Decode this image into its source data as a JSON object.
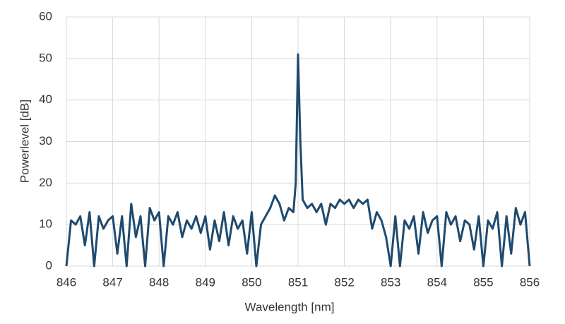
{
  "chart_data": {
    "type": "line",
    "xlabel": "Wavelength [nm]",
    "ylabel": "Powerlevel [dB]",
    "x": [
      846.0,
      846.1,
      846.2,
      846.3,
      846.4,
      846.5,
      846.6,
      846.7,
      846.8,
      846.9,
      847.0,
      847.1,
      847.2,
      847.3,
      847.4,
      847.5,
      847.6,
      847.7,
      847.8,
      847.9,
      848.0,
      848.1,
      848.2,
      848.3,
      848.4,
      848.5,
      848.6,
      848.7,
      848.8,
      848.9,
      849.0,
      849.1,
      849.2,
      849.3,
      849.4,
      849.5,
      849.6,
      849.7,
      849.8,
      849.9,
      850.0,
      850.1,
      850.2,
      850.3,
      850.4,
      850.5,
      850.6,
      850.7,
      850.8,
      850.9,
      850.95,
      851.0,
      851.05,
      851.1,
      851.2,
      851.3,
      851.4,
      851.5,
      851.6,
      851.7,
      851.8,
      851.9,
      852.0,
      852.1,
      852.2,
      852.3,
      852.4,
      852.5,
      852.6,
      852.7,
      852.8,
      852.9,
      853.0,
      853.1,
      853.2,
      853.3,
      853.4,
      853.5,
      853.6,
      853.7,
      853.8,
      853.9,
      854.0,
      854.1,
      854.2,
      854.3,
      854.4,
      854.5,
      854.6,
      854.7,
      854.8,
      854.9,
      855.0,
      855.1,
      855.2,
      855.3,
      855.4,
      855.5,
      855.6,
      855.7,
      855.8,
      855.9,
      856.0
    ],
    "series": [
      {
        "name": "Powerlevel",
        "color": "#1f4a6e",
        "values": [
          0,
          11,
          10,
          12,
          5,
          13,
          0,
          12,
          9,
          11,
          12,
          3,
          12,
          0,
          15,
          7,
          12,
          0,
          14,
          11,
          13,
          0,
          12,
          10,
          13,
          7,
          11,
          9,
          12,
          8,
          12,
          4,
          11,
          6,
          13,
          5,
          12,
          9,
          11,
          3,
          13,
          0,
          10,
          12,
          14,
          17,
          15,
          11,
          14,
          13,
          20,
          51,
          30,
          16,
          14,
          15,
          13,
          15,
          10,
          15,
          14,
          16,
          15,
          16,
          14,
          16,
          15,
          16,
          9,
          13,
          11,
          7,
          0,
          12,
          0,
          11,
          9,
          12,
          3,
          13,
          8,
          11,
          12,
          0,
          13,
          10,
          12,
          6,
          11,
          10,
          4,
          12,
          0,
          11,
          9,
          13,
          0,
          12,
          3,
          14,
          10,
          13,
          0
        ]
      }
    ],
    "xlim": [
      846,
      856
    ],
    "xticks": [
      846,
      847,
      848,
      849,
      850,
      851,
      852,
      853,
      854,
      855,
      856
    ],
    "ylim": [
      0,
      60
    ],
    "yticks": [
      0,
      10,
      20,
      30,
      40,
      50,
      60
    ],
    "grid": true
  }
}
